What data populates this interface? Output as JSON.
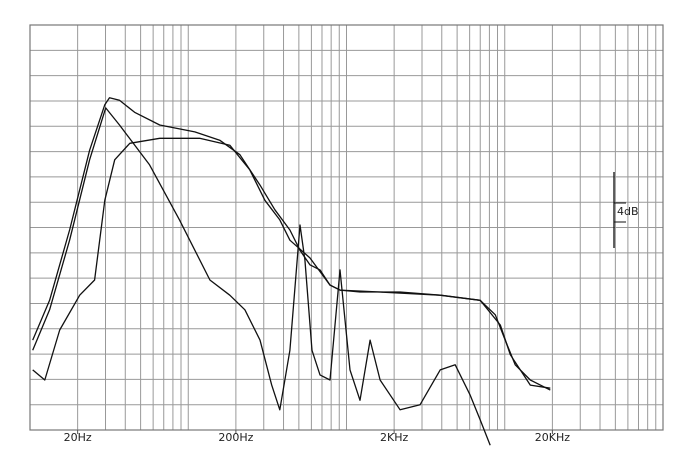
{
  "chart_data": {
    "type": "line",
    "xscale": "log",
    "xlim": [
      10,
      100000
    ],
    "xticks": [
      {
        "value": 20,
        "label": "20Hz"
      },
      {
        "value": 200,
        "label": "200Hz"
      },
      {
        "value": 2000,
        "label": "2KHz"
      },
      {
        "value": 20000,
        "label": "20KHz"
      }
    ],
    "ylim": [
      0,
      64
    ],
    "yticks": [
      0,
      4,
      8,
      12,
      16,
      20,
      24,
      28,
      32,
      36,
      40,
      44,
      48,
      52,
      56,
      60,
      64
    ],
    "grid": true,
    "annotation": "4dB",
    "series": [
      {
        "color": "#111111",
        "x": [
          10.4,
          13.3,
          17.8,
          23.8,
          29.7,
          31.8,
          36.8,
          45.8,
          66,
          110,
          158,
          212,
          284,
          353,
          439,
          508,
          587,
          680,
          787,
          910,
          1217,
          2182,
          3908,
          7000,
          8710,
          10070,
          11640,
          14500,
          19400
        ],
        "values": [
          14.2,
          20.5,
          31.6,
          44.2,
          51.4,
          52.5,
          52.1,
          50.2,
          48.2,
          47.1,
          45.8,
          43.5,
          38.7,
          34.8,
          31.6,
          28.4,
          26.1,
          25.3,
          22.9,
          22.1,
          21.8,
          21.8,
          21.3,
          20.5,
          18.2,
          14.2,
          10.3,
          7.9,
          6.3
        ]
      },
      {
        "color": "#111111",
        "x": [
          10.4,
          13.3,
          17.8,
          23.8,
          30.1,
          36.8,
          57,
          88,
          137,
          183,
          228,
          284,
          337,
          379,
          439,
          508,
          546,
          605,
          680,
          787,
          910,
          1052,
          1217,
          1410,
          1630,
          2182,
          2917,
          3908,
          4860,
          6050,
          7000,
          8090
        ],
        "values": [
          12.6,
          19.0,
          30.0,
          42.7,
          50.9,
          48.2,
          41.9,
          33.2,
          23.7,
          21.3,
          19.0,
          14.2,
          7.1,
          3.2,
          12.6,
          32.4,
          26.9,
          12.6,
          8.7,
          7.9,
          25.3,
          9.5,
          4.7,
          14.2,
          7.9,
          3.2,
          4.0,
          9.5,
          10.3,
          5.5,
          1.6,
          -2.4
        ]
      },
      {
        "color": "#111111",
        "x": [
          10.4,
          12.4,
          15.4,
          20.6,
          25.6,
          29.7,
          34.3,
          42.7,
          66,
          118,
          183,
          245,
          305,
          379,
          439,
          587,
          787,
          910,
          1630,
          3908,
          7000,
          9370,
          10840,
          14500,
          19400
        ],
        "values": [
          9.5,
          7.9,
          15.8,
          21.3,
          23.7,
          36.3,
          42.7,
          45.3,
          46.1,
          46.1,
          45.0,
          41.1,
          36.3,
          33.2,
          30.0,
          27.2,
          22.9,
          22.1,
          21.8,
          21.3,
          20.5,
          16.6,
          11.9,
          7.1,
          6.6
        ]
      }
    ]
  }
}
